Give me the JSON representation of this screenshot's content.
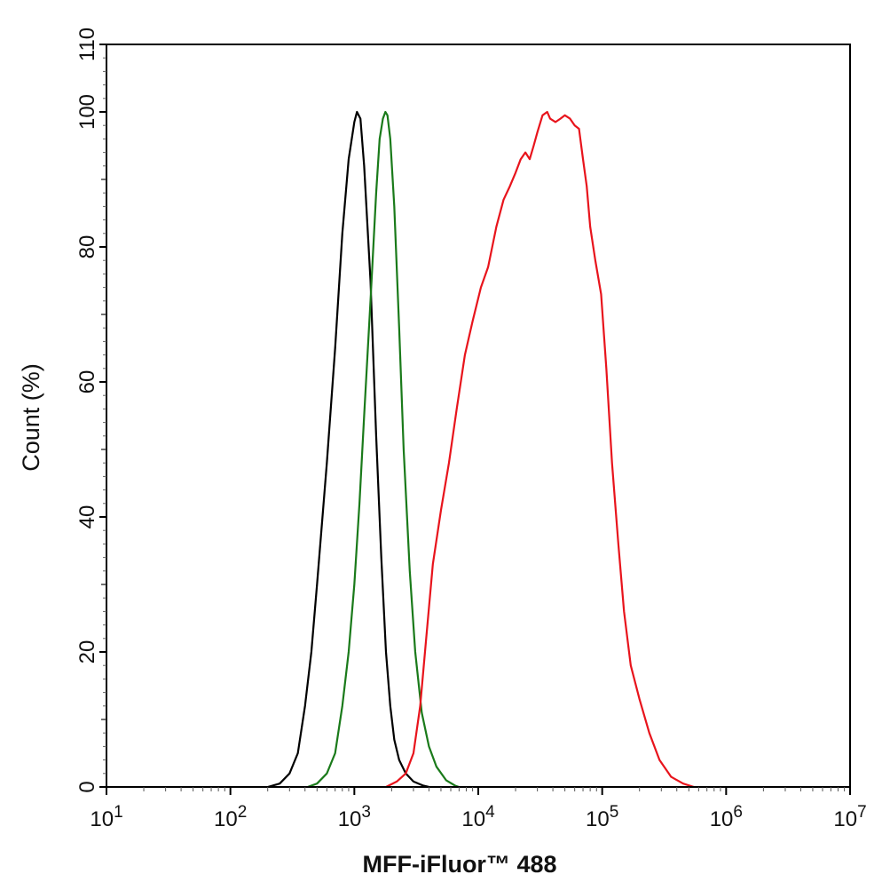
{
  "chart_data": {
    "type": "line",
    "title": "",
    "xlabel": "MFF-iFluor™ 488",
    "ylabel": "Count  (%)",
    "x_scale": "log",
    "xlim": [
      10,
      10000000
    ],
    "ylim": [
      0,
      110
    ],
    "x_ticks": [
      {
        "value": 10,
        "base": "10",
        "exp": "1"
      },
      {
        "value": 100,
        "base": "10",
        "exp": "2"
      },
      {
        "value": 1000,
        "base": "10",
        "exp": "3"
      },
      {
        "value": 10000,
        "base": "10",
        "exp": "4"
      },
      {
        "value": 100000,
        "base": "10",
        "exp": "5"
      },
      {
        "value": 1000000,
        "base": "10",
        "exp": "6"
      },
      {
        "value": 10000000,
        "base": "10",
        "exp": "7"
      }
    ],
    "y_ticks": [
      0,
      20,
      40,
      60,
      80,
      100,
      110
    ],
    "grid": false,
    "legend": "none",
    "series": [
      {
        "color": "#000000",
        "points": [
          [
            200,
            0
          ],
          [
            250,
            0.5
          ],
          [
            300,
            2
          ],
          [
            350,
            5
          ],
          [
            400,
            12
          ],
          [
            450,
            20
          ],
          [
            500,
            30
          ],
          [
            600,
            48
          ],
          [
            700,
            65
          ],
          [
            800,
            82
          ],
          [
            900,
            93
          ],
          [
            1000,
            98.5
          ],
          [
            1050,
            100
          ],
          [
            1120,
            99
          ],
          [
            1200,
            92
          ],
          [
            1350,
            75
          ],
          [
            1500,
            52
          ],
          [
            1650,
            34
          ],
          [
            1800,
            20
          ],
          [
            1950,
            12
          ],
          [
            2100,
            7
          ],
          [
            2300,
            4
          ],
          [
            2600,
            2
          ],
          [
            3000,
            0.8
          ],
          [
            3600,
            0.2
          ],
          [
            4000,
            0
          ]
        ]
      },
      {
        "color": "#1a7a1a",
        "points": [
          [
            420,
            0
          ],
          [
            500,
            0.5
          ],
          [
            600,
            2
          ],
          [
            700,
            5
          ],
          [
            800,
            12
          ],
          [
            900,
            20
          ],
          [
            1000,
            30
          ],
          [
            1100,
            42
          ],
          [
            1200,
            55
          ],
          [
            1350,
            72
          ],
          [
            1500,
            88
          ],
          [
            1600,
            96
          ],
          [
            1700,
            99
          ],
          [
            1780,
            100
          ],
          [
            1850,
            99.5
          ],
          [
            1950,
            96
          ],
          [
            2100,
            86
          ],
          [
            2300,
            68
          ],
          [
            2500,
            50
          ],
          [
            2800,
            32
          ],
          [
            3100,
            20
          ],
          [
            3500,
            11
          ],
          [
            4000,
            6
          ],
          [
            4600,
            3
          ],
          [
            5500,
            1
          ],
          [
            6500,
            0.2
          ],
          [
            7000,
            0
          ]
        ]
      },
      {
        "color": "#e8141c",
        "points": [
          [
            1800,
            0
          ],
          [
            2200,
            0.8
          ],
          [
            2600,
            2
          ],
          [
            3000,
            5
          ],
          [
            3400,
            12
          ],
          [
            3800,
            22
          ],
          [
            4300,
            33
          ],
          [
            5000,
            41
          ],
          [
            5800,
            48
          ],
          [
            6700,
            56
          ],
          [
            7800,
            64
          ],
          [
            9000,
            69
          ],
          [
            10500,
            74
          ],
          [
            12000,
            77
          ],
          [
            14000,
            83
          ],
          [
            16000,
            87
          ],
          [
            18000,
            89
          ],
          [
            20000,
            91
          ],
          [
            22000,
            93
          ],
          [
            24000,
            94
          ],
          [
            26000,
            93
          ],
          [
            28000,
            95
          ],
          [
            30000,
            97
          ],
          [
            33000,
            99.5
          ],
          [
            36000,
            100
          ],
          [
            38000,
            99
          ],
          [
            42000,
            98.5
          ],
          [
            46000,
            99
          ],
          [
            50000,
            99.5
          ],
          [
            55000,
            99
          ],
          [
            60000,
            98
          ],
          [
            65000,
            97.5
          ],
          [
            70000,
            93
          ],
          [
            75000,
            89
          ],
          [
            80000,
            83
          ],
          [
            88000,
            78
          ],
          [
            98000,
            73
          ],
          [
            108000,
            62
          ],
          [
            120000,
            48
          ],
          [
            135000,
            36
          ],
          [
            150000,
            26
          ],
          [
            170000,
            18
          ],
          [
            200000,
            13
          ],
          [
            240000,
            8
          ],
          [
            290000,
            4
          ],
          [
            360000,
            1.5
          ],
          [
            450000,
            0.5
          ],
          [
            550000,
            0
          ]
        ]
      }
    ]
  }
}
